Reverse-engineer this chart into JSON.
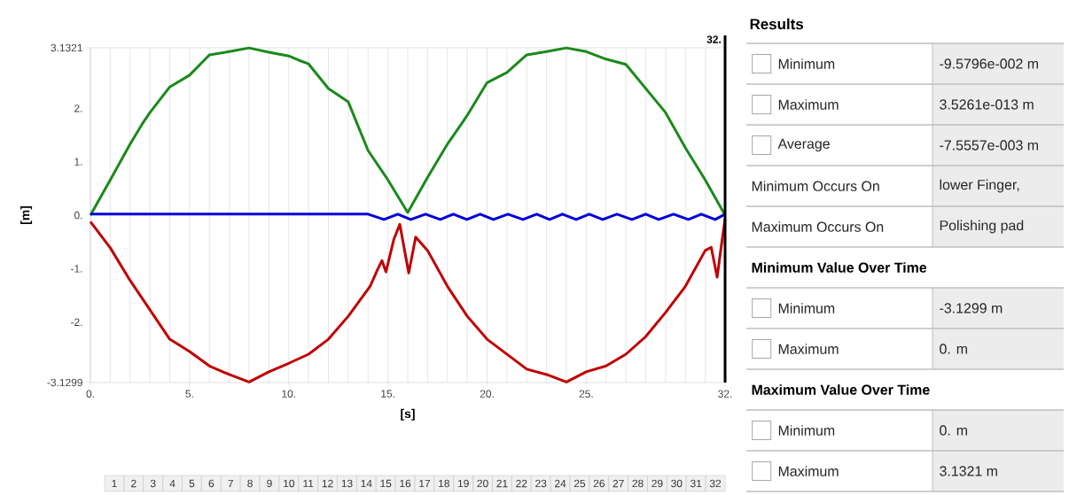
{
  "chart_data": [
    {
      "type": "line",
      "xlabel": "[s]",
      "ylabel": "[m]",
      "xlim": [
        0,
        32
      ],
      "ylim": [
        -3.1299,
        3.1321
      ],
      "xticks": [
        {
          "value": 0,
          "label": "0."
        },
        {
          "value": 1,
          "label": null
        },
        {
          "value": 2,
          "label": null
        },
        {
          "value": 3,
          "label": null
        },
        {
          "value": 4,
          "label": null
        },
        {
          "value": 5,
          "label": "5."
        },
        {
          "value": 6,
          "label": null
        },
        {
          "value": 7,
          "label": null
        },
        {
          "value": 8,
          "label": null
        },
        {
          "value": 9,
          "label": null
        },
        {
          "value": 10,
          "label": "10."
        },
        {
          "value": 11,
          "label": null
        },
        {
          "value": 12,
          "label": null
        },
        {
          "value": 13,
          "label": null
        },
        {
          "value": 14,
          "label": null
        },
        {
          "value": 15,
          "label": "15."
        },
        {
          "value": 16,
          "label": null
        },
        {
          "value": 17,
          "label": null
        },
        {
          "value": 18,
          "label": null
        },
        {
          "value": 19,
          "label": null
        },
        {
          "value": 20,
          "label": "20."
        },
        {
          "value": 21,
          "label": null
        },
        {
          "value": 22,
          "label": null
        },
        {
          "value": 23,
          "label": null
        },
        {
          "value": 24,
          "label": null
        },
        {
          "value": 25,
          "label": "25."
        },
        {
          "value": 26,
          "label": null
        },
        {
          "value": 27,
          "label": null
        },
        {
          "value": 28,
          "label": null
        },
        {
          "value": 29,
          "label": null
        },
        {
          "value": 30,
          "label": null
        },
        {
          "value": 31,
          "label": null
        },
        {
          "value": 32,
          "label": "32."
        }
      ],
      "yticks": [
        -3.1299,
        {
          "value": -2,
          "label": "-2."
        },
        {
          "value": -1,
          "label": "-1."
        },
        {
          "value": 0,
          "label": "0."
        },
        {
          "value": 1,
          "label": "1."
        },
        {
          "value": 2,
          "label": "2."
        },
        3.1321
      ],
      "grid": "x",
      "marker": "none",
      "line_style": "solid",
      "ref_lines": [
        {
          "axis": "x",
          "value": 32,
          "label": "32.",
          "color": "#000000"
        }
      ],
      "series": [
        {
          "color": "#1a8a1a",
          "x": [
            0,
            1,
            2,
            2.6,
            3,
            4,
            5,
            6,
            7,
            8,
            9,
            10,
            10.5,
            11,
            12,
            13,
            14,
            15,
            16,
            17,
            18,
            18.8,
            19,
            20,
            21,
            22,
            23,
            24,
            25,
            26,
            27,
            28,
            29,
            30,
            31,
            32
          ],
          "values": [
            0,
            0.66,
            1.33,
            1.7,
            1.92,
            2.4,
            2.62,
            3.0,
            3.06,
            3.13,
            3.05,
            2.98,
            2.9,
            2.83,
            2.37,
            2.12,
            1.21,
            0.66,
            0.05,
            0.71,
            1.33,
            1.76,
            1.87,
            2.48,
            2.67,
            3.0,
            3.06,
            3.13,
            3.06,
            2.92,
            2.82,
            2.37,
            1.92,
            1.26,
            0.66,
            0
          ]
        },
        {
          "color": "#0000dd",
          "x": [
            0,
            14,
            14.8,
            15.5,
            16.15,
            16.9,
            17.64,
            18.3,
            18.98,
            19.65,
            20.32,
            21.05,
            21.81,
            22.5,
            23.15,
            23.8,
            24.49,
            25.15,
            25.83,
            26.55,
            27.3,
            28.0,
            28.65,
            29.4,
            30.15,
            30.8,
            31.5,
            32
          ],
          "values": [
            0.02,
            0.02,
            -0.08,
            0.02,
            -0.08,
            0.02,
            -0.08,
            0.02,
            -0.08,
            0.02,
            -0.08,
            0.02,
            -0.08,
            0.02,
            -0.08,
            0.02,
            -0.08,
            0.02,
            -0.08,
            0.02,
            -0.08,
            0.02,
            -0.08,
            0.02,
            -0.08,
            0.02,
            -0.08,
            0.02
          ]
        },
        {
          "color": "#c00000",
          "x": [
            0,
            1,
            2,
            3,
            4,
            5,
            6,
            7,
            8,
            9,
            10,
            11,
            12,
            13,
            14.1,
            14.5,
            14.7,
            14.9,
            15.3,
            15.6,
            15.9,
            16.05,
            16.4,
            17,
            18,
            19,
            20,
            21,
            22,
            23,
            24,
            25,
            26,
            27,
            28,
            29,
            30,
            31,
            31.3,
            31.6,
            31.8,
            32
          ],
          "values": [
            -0.12,
            -0.61,
            -1.22,
            -1.77,
            -2.32,
            -2.55,
            -2.82,
            -2.98,
            -3.12,
            -2.93,
            -2.77,
            -2.6,
            -2.32,
            -1.89,
            -1.33,
            -1.0,
            -0.85,
            -1.06,
            -0.45,
            -0.17,
            -0.78,
            -1.08,
            -0.41,
            -0.66,
            -1.33,
            -1.89,
            -2.32,
            -2.6,
            -2.88,
            -2.98,
            -3.12,
            -2.93,
            -2.82,
            -2.6,
            -2.27,
            -1.82,
            -1.33,
            -0.66,
            -0.6,
            -1.16,
            -0.6,
            -0.07
          ]
        }
      ],
      "annotations": [
        "1",
        "2",
        "3",
        "4",
        "5",
        "6",
        "7",
        "8",
        "9",
        "10",
        "11",
        "12",
        "13",
        "14",
        "15",
        "16",
        "17",
        "18",
        "19",
        "20",
        "21",
        "22",
        "23",
        "24",
        "25",
        "26",
        "27",
        "28",
        "29",
        "30",
        "31",
        "32"
      ]
    },
    {
      "type": "other",
      "title": "Results",
      "annotations": [
        "Minimum",
        "-9.5796e-002 m",
        "Maximum",
        "3.5261e-013 m",
        "Average",
        "-7.5557e-003 m",
        "Minimum Occurs On",
        "lower Finger,",
        "Maximum Occurs On",
        "Polishing pad",
        "Minimum Value Over Time",
        "Minimum",
        "-3.1299 m",
        "Maximum",
        "0. m",
        "Maximum Value Over Time",
        "Minimum",
        "0. m",
        "Maximum",
        "3.1321 m"
      ]
    }
  ]
}
